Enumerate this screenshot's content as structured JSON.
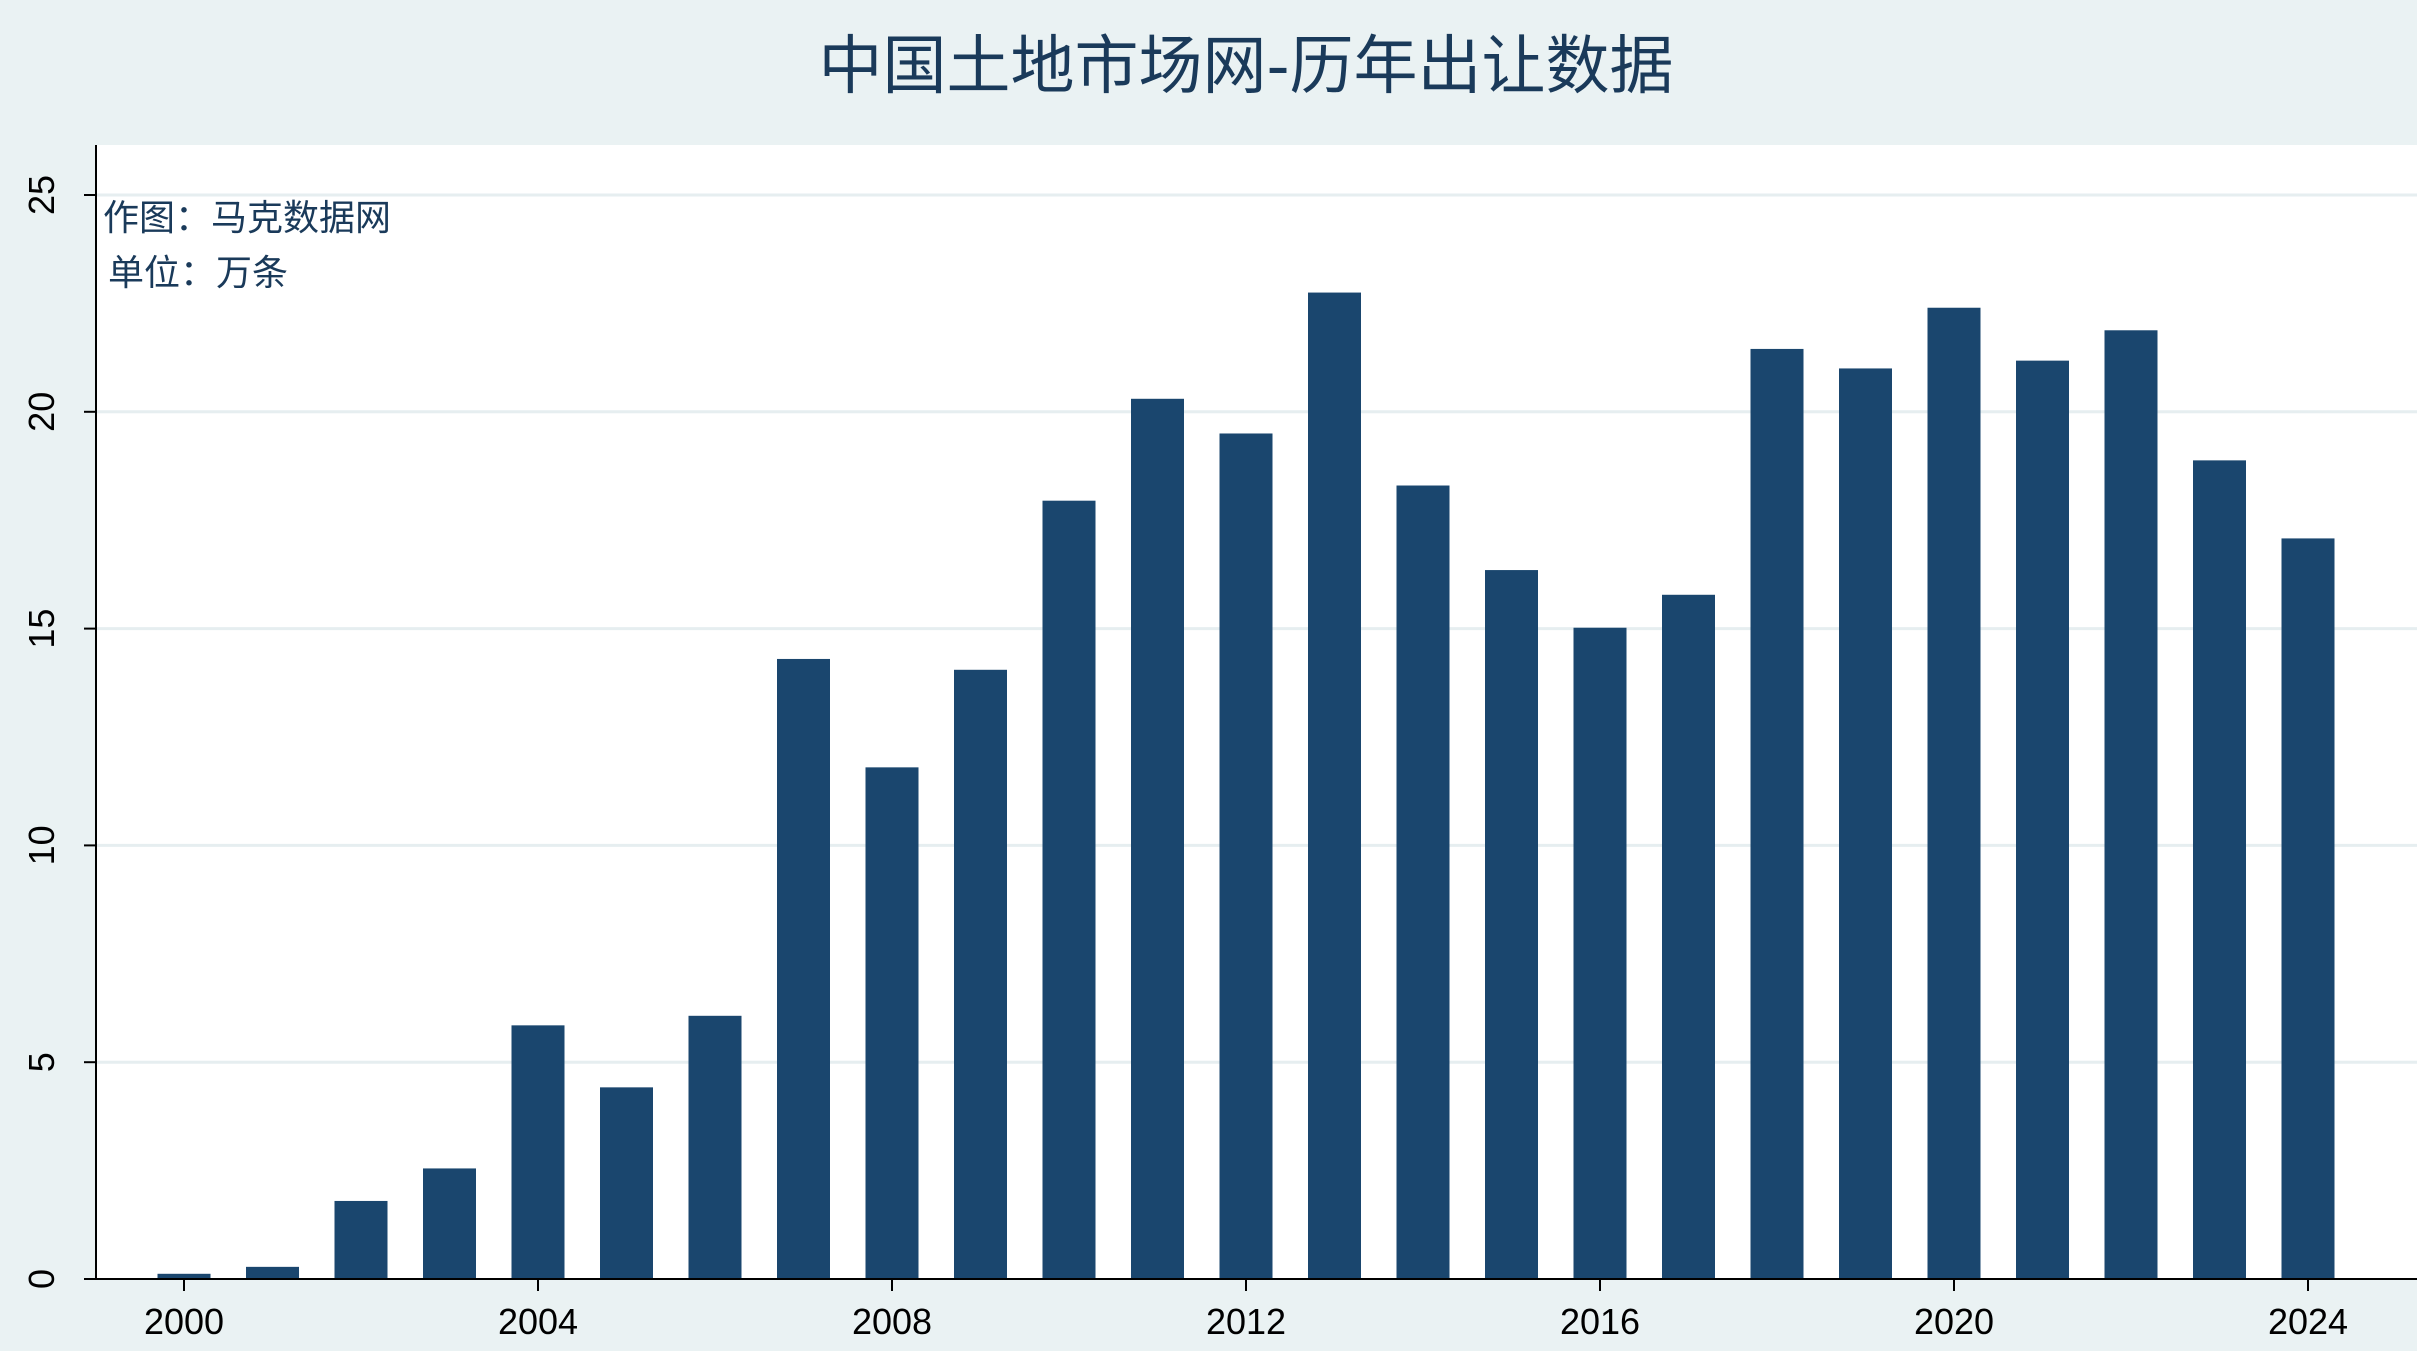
{
  "chart_data": {
    "type": "bar",
    "title": "中国土地市场网-历年出让数据",
    "annotations": [
      "作图：马克数据网",
      "单位：万条"
    ],
    "xlabel": "",
    "ylabel": "",
    "x": [
      2000,
      2001,
      2002,
      2003,
      2004,
      2005,
      2006,
      2007,
      2008,
      2009,
      2010,
      2011,
      2012,
      2013,
      2014,
      2015,
      2016,
      2017,
      2018,
      2019,
      2020,
      2021,
      2022,
      2023,
      2024
    ],
    "values": [
      0.12,
      0.28,
      1.8,
      2.55,
      5.85,
      4.42,
      6.07,
      14.3,
      11.8,
      14.05,
      17.95,
      20.3,
      19.5,
      22.75,
      18.3,
      16.35,
      15.02,
      15.78,
      21.45,
      21.0,
      22.4,
      21.18,
      21.88,
      18.88,
      17.08
    ],
    "xticks": [
      "2000",
      "2004",
      "2008",
      "2012",
      "2016",
      "2020",
      "2024"
    ],
    "yticks": [
      "0",
      "5",
      "10",
      "15",
      "20",
      "25"
    ],
    "ylim": [
      0,
      25
    ],
    "grid": true,
    "bar_color": "#1a466e"
  }
}
